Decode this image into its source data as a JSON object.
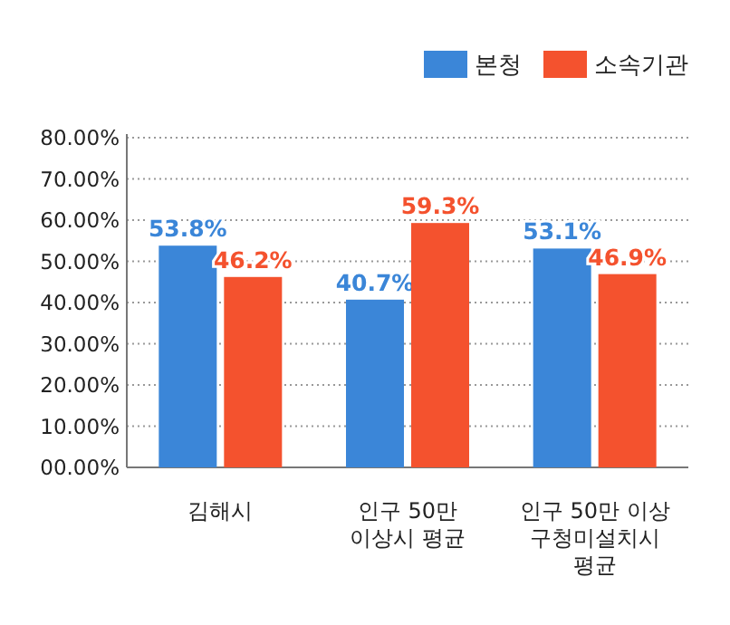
{
  "chart_data": {
    "type": "bar",
    "categories": [
      "김해시",
      "인구 50만\n이상시 평균",
      "인구 50만 이상\n구청미설치시\n평균"
    ],
    "series": [
      {
        "name": "본청",
        "color": "#3b86d8",
        "values": [
          53.8,
          40.7,
          53.1
        ],
        "value_labels": [
          "53.8%",
          "40.7%",
          "53.1%"
        ]
      },
      {
        "name": "소속기관",
        "color": "#f4522e",
        "values": [
          46.2,
          59.3,
          46.9
        ],
        "value_labels": [
          "46.2%",
          "59.3%",
          "46.9%"
        ]
      }
    ],
    "ylim": [
      0,
      80
    ],
    "yticks": [
      {
        "value": 0,
        "label": "00.00%"
      },
      {
        "value": 10,
        "label": "10.00%"
      },
      {
        "value": 20,
        "label": "20.00%"
      },
      {
        "value": 30,
        "label": "30.00%"
      },
      {
        "value": 40,
        "label": "40.00%"
      },
      {
        "value": 50,
        "label": "50.00%"
      },
      {
        "value": 60,
        "label": "60.00%"
      },
      {
        "value": 70,
        "label": "70.00%"
      },
      {
        "value": 80,
        "label": "80.00%"
      }
    ],
    "grid": "y",
    "legend": "top right"
  }
}
